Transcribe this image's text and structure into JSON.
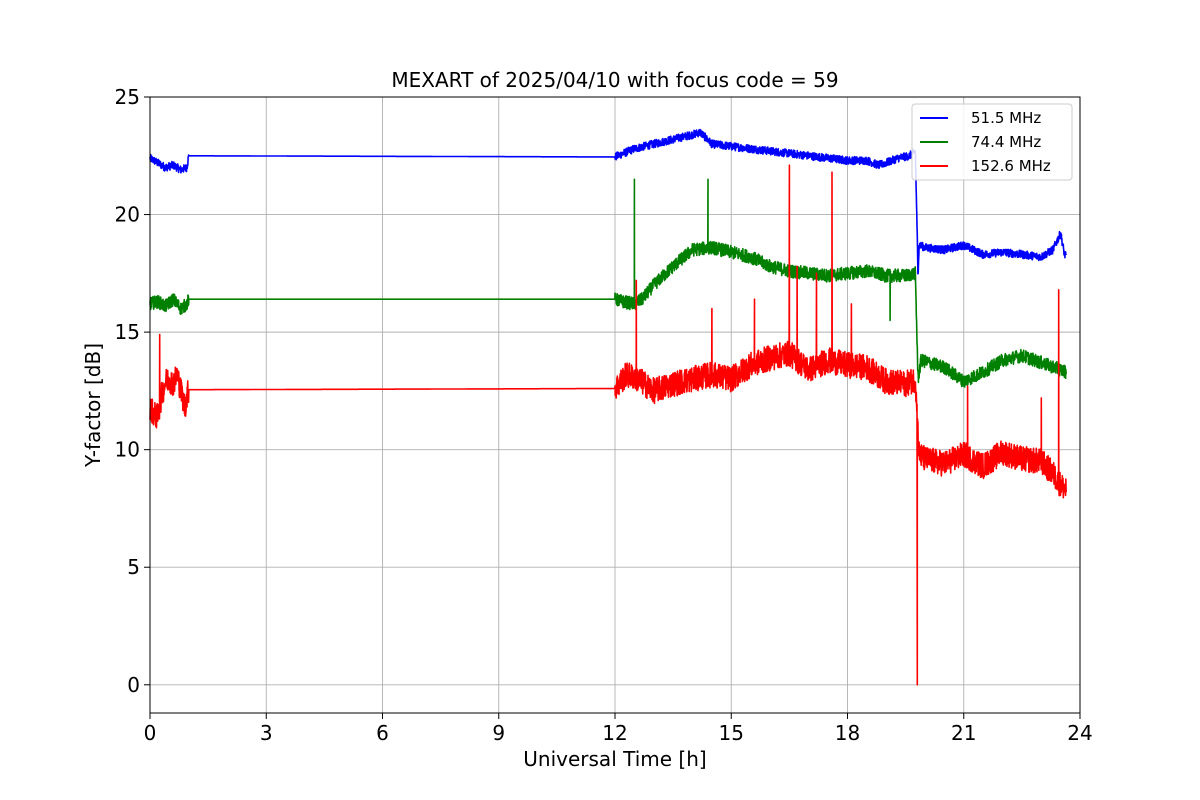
{
  "chart_data": {
    "type": "line",
    "title": "MEXART of 2025/04/10 with focus code = 59",
    "xlabel": "Universal Time [h]",
    "ylabel": "Y-factor [dB]",
    "xlim": [
      0,
      24
    ],
    "ylim": [
      -1.2,
      25
    ],
    "xticks": [
      0,
      3,
      6,
      9,
      12,
      15,
      18,
      21,
      24
    ],
    "yticks": [
      0,
      5,
      10,
      15,
      20,
      25
    ],
    "grid": true,
    "legend_position": "top-right",
    "series": [
      {
        "name": "51.5 MHz",
        "color": "#0000ff",
        "x": [
          0,
          0.2,
          0.4,
          0.6,
          0.8,
          0.95,
          1.0,
          12.0,
          12.5,
          13.0,
          13.5,
          14.0,
          14.2,
          14.5,
          15.0,
          15.5,
          16.0,
          16.5,
          17.0,
          17.5,
          18.0,
          18.5,
          18.8,
          19.0,
          19.3,
          19.6,
          19.75,
          19.82,
          19.85,
          20.0,
          20.5,
          21.0,
          21.5,
          22.0,
          22.5,
          23.0,
          23.3,
          23.5,
          23.6,
          23.65
        ],
        "y": [
          22.4,
          22.2,
          22.0,
          22.1,
          21.9,
          22.0,
          22.5,
          22.45,
          22.8,
          23.0,
          23.2,
          23.4,
          23.5,
          23.0,
          22.9,
          22.8,
          22.7,
          22.6,
          22.5,
          22.4,
          22.3,
          22.3,
          22.1,
          22.2,
          22.4,
          22.5,
          22.7,
          17.5,
          18.7,
          18.6,
          18.5,
          18.7,
          18.3,
          18.4,
          18.3,
          18.2,
          18.5,
          19.2,
          18.3,
          18.2
        ],
        "noise": 0.17
      },
      {
        "name": "74.4 MHz",
        "color": "#008000",
        "x": [
          0,
          0.2,
          0.4,
          0.6,
          0.8,
          0.95,
          1.0,
          12.0,
          12.2,
          12.5,
          12.7,
          13.0,
          13.5,
          14.0,
          14.5,
          15.0,
          15.5,
          16.0,
          16.5,
          17.0,
          17.5,
          18.0,
          18.5,
          19.0,
          19.5,
          19.75,
          19.82,
          19.9,
          20.5,
          21.0,
          21.5,
          22.0,
          22.5,
          23.0,
          23.5,
          23.65
        ],
        "y": [
          16.2,
          16.3,
          16.1,
          16.4,
          16.0,
          16.2,
          16.4,
          16.4,
          16.3,
          16.2,
          16.4,
          17.0,
          17.8,
          18.5,
          18.6,
          18.4,
          18.2,
          17.8,
          17.6,
          17.5,
          17.4,
          17.5,
          17.6,
          17.4,
          17.4,
          17.5,
          13.0,
          13.8,
          13.5,
          12.9,
          13.3,
          13.8,
          14.0,
          13.7,
          13.4,
          13.3
        ],
        "noise": 0.28
      },
      {
        "name": "152.6 MHz",
        "color": "#ff0000",
        "x": [
          0,
          0.1,
          0.2,
          0.3,
          0.4,
          0.5,
          0.6,
          0.7,
          0.8,
          0.9,
          0.97,
          1.0,
          12.0,
          12.3,
          12.6,
          13.0,
          13.5,
          14.0,
          14.5,
          15.0,
          15.5,
          16.0,
          16.5,
          17.0,
          17.5,
          18.0,
          18.5,
          19.0,
          19.5,
          19.75,
          19.85,
          20.0,
          20.5,
          21.0,
          21.5,
          22.0,
          22.5,
          23.0,
          23.3,
          23.5,
          23.65
        ],
        "y": [
          11.8,
          11.5,
          11.4,
          12.3,
          12.9,
          13.0,
          12.8,
          13.2,
          12.5,
          11.8,
          12.4,
          12.55,
          12.6,
          13.2,
          13.0,
          12.5,
          12.8,
          13.0,
          13.2,
          13.0,
          13.6,
          13.9,
          14.1,
          13.4,
          13.8,
          13.6,
          13.5,
          12.9,
          12.8,
          13.0,
          9.8,
          9.6,
          9.4,
          9.8,
          9.3,
          9.9,
          9.6,
          9.5,
          9.0,
          8.5,
          8.3
        ],
        "noise": 0.55,
        "spikes": [
          {
            "x": 0.25,
            "y": 14.9
          },
          {
            "x": 12.55,
            "y": 17.2
          },
          {
            "x": 14.5,
            "y": 16.0
          },
          {
            "x": 15.6,
            "y": 16.4
          },
          {
            "x": 16.5,
            "y": 22.1
          },
          {
            "x": 16.7,
            "y": 17.8
          },
          {
            "x": 17.6,
            "y": 21.8
          },
          {
            "x": 17.2,
            "y": 17.5
          },
          {
            "x": 18.1,
            "y": 16.2
          },
          {
            "x": 21.1,
            "y": 12.7
          },
          {
            "x": 23.45,
            "y": 16.8
          },
          {
            "x": 23.0,
            "y": 12.2
          }
        ]
      }
    ],
    "extra_spikes": [
      {
        "series": 1,
        "x": 12.5,
        "y": 21.5
      },
      {
        "series": 1,
        "x": 14.4,
        "y": 21.5
      },
      {
        "series": 1,
        "x": 19.1,
        "y": 15.5
      },
      {
        "series": 2,
        "x": 19.8,
        "y": 0.0
      }
    ]
  }
}
